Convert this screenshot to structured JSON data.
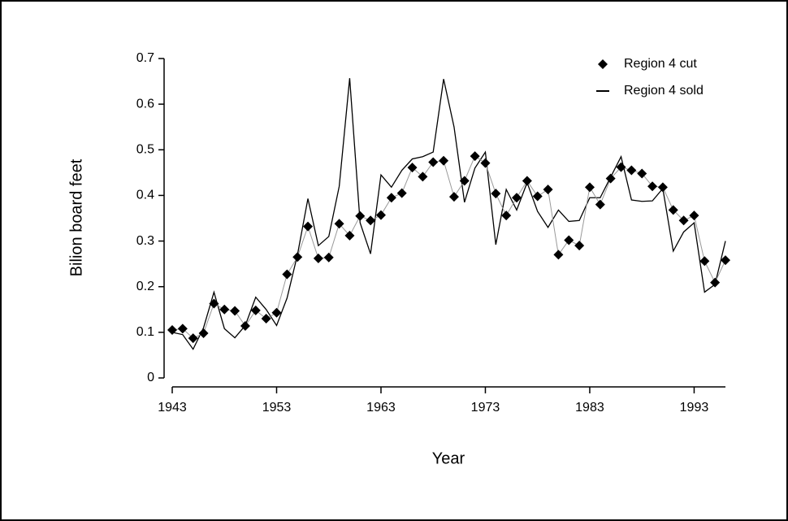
{
  "chart_data": {
    "type": "line",
    "x_label": "Year",
    "y_label": "Bilion board feet",
    "x": [
      1943,
      1944,
      1945,
      1946,
      1947,
      1948,
      1949,
      1950,
      1951,
      1952,
      1953,
      1954,
      1955,
      1956,
      1957,
      1958,
      1959,
      1960,
      1961,
      1962,
      1963,
      1964,
      1965,
      1966,
      1967,
      1968,
      1969,
      1970,
      1971,
      1972,
      1973,
      1974,
      1975,
      1976,
      1977,
      1978,
      1979,
      1980,
      1981,
      1982,
      1983,
      1984,
      1985,
      1986,
      1987,
      1988,
      1989,
      1990,
      1991,
      1992,
      1993,
      1994,
      1995,
      1996
    ],
    "series": [
      {
        "name": "Region 4 cut",
        "color": "#999999",
        "marker": "diamond",
        "values": [
          0.105,
          0.108,
          0.087,
          0.098,
          0.163,
          0.15,
          0.147,
          0.114,
          0.148,
          0.13,
          0.143,
          0.227,
          0.265,
          0.332,
          0.262,
          0.264,
          0.338,
          0.312,
          0.355,
          0.345,
          0.357,
          0.395,
          0.405,
          0.461,
          0.441,
          0.473,
          0.476,
          0.397,
          0.432,
          0.486,
          0.471,
          0.404,
          0.356,
          0.395,
          0.432,
          0.398,
          0.413,
          0.27,
          0.302,
          0.29,
          0.418,
          0.38,
          0.437,
          0.462,
          0.455,
          0.448,
          0.42,
          0.418,
          0.368,
          0.345,
          0.356,
          0.256,
          0.209,
          0.258
        ]
      },
      {
        "name": "Region 4 sold",
        "color": "#000000",
        "marker": "none",
        "values": [
          0.1,
          0.095,
          0.063,
          0.11,
          0.188,
          0.108,
          0.088,
          0.115,
          0.177,
          0.15,
          0.115,
          0.175,
          0.27,
          0.393,
          0.29,
          0.31,
          0.42,
          0.657,
          0.34,
          0.272,
          0.445,
          0.418,
          0.455,
          0.48,
          0.485,
          0.495,
          0.655,
          0.55,
          0.385,
          0.46,
          0.495,
          0.292,
          0.413,
          0.368,
          0.428,
          0.365,
          0.33,
          0.368,
          0.343,
          0.345,
          0.395,
          0.395,
          0.44,
          0.485,
          0.39,
          0.387,
          0.388,
          0.415,
          0.278,
          0.32,
          0.34,
          0.188,
          0.205,
          0.3
        ]
      }
    ],
    "xlim": [
      1943,
      1996
    ],
    "xticks": [
      1943,
      1953,
      1963,
      1973,
      1983,
      1993
    ],
    "ylim": [
      0,
      0.7
    ],
    "yticks": [
      0,
      0.1,
      0.2,
      0.3,
      0.4,
      0.5,
      0.6,
      0.7
    ],
    "legend": "top-right",
    "grid": false
  }
}
